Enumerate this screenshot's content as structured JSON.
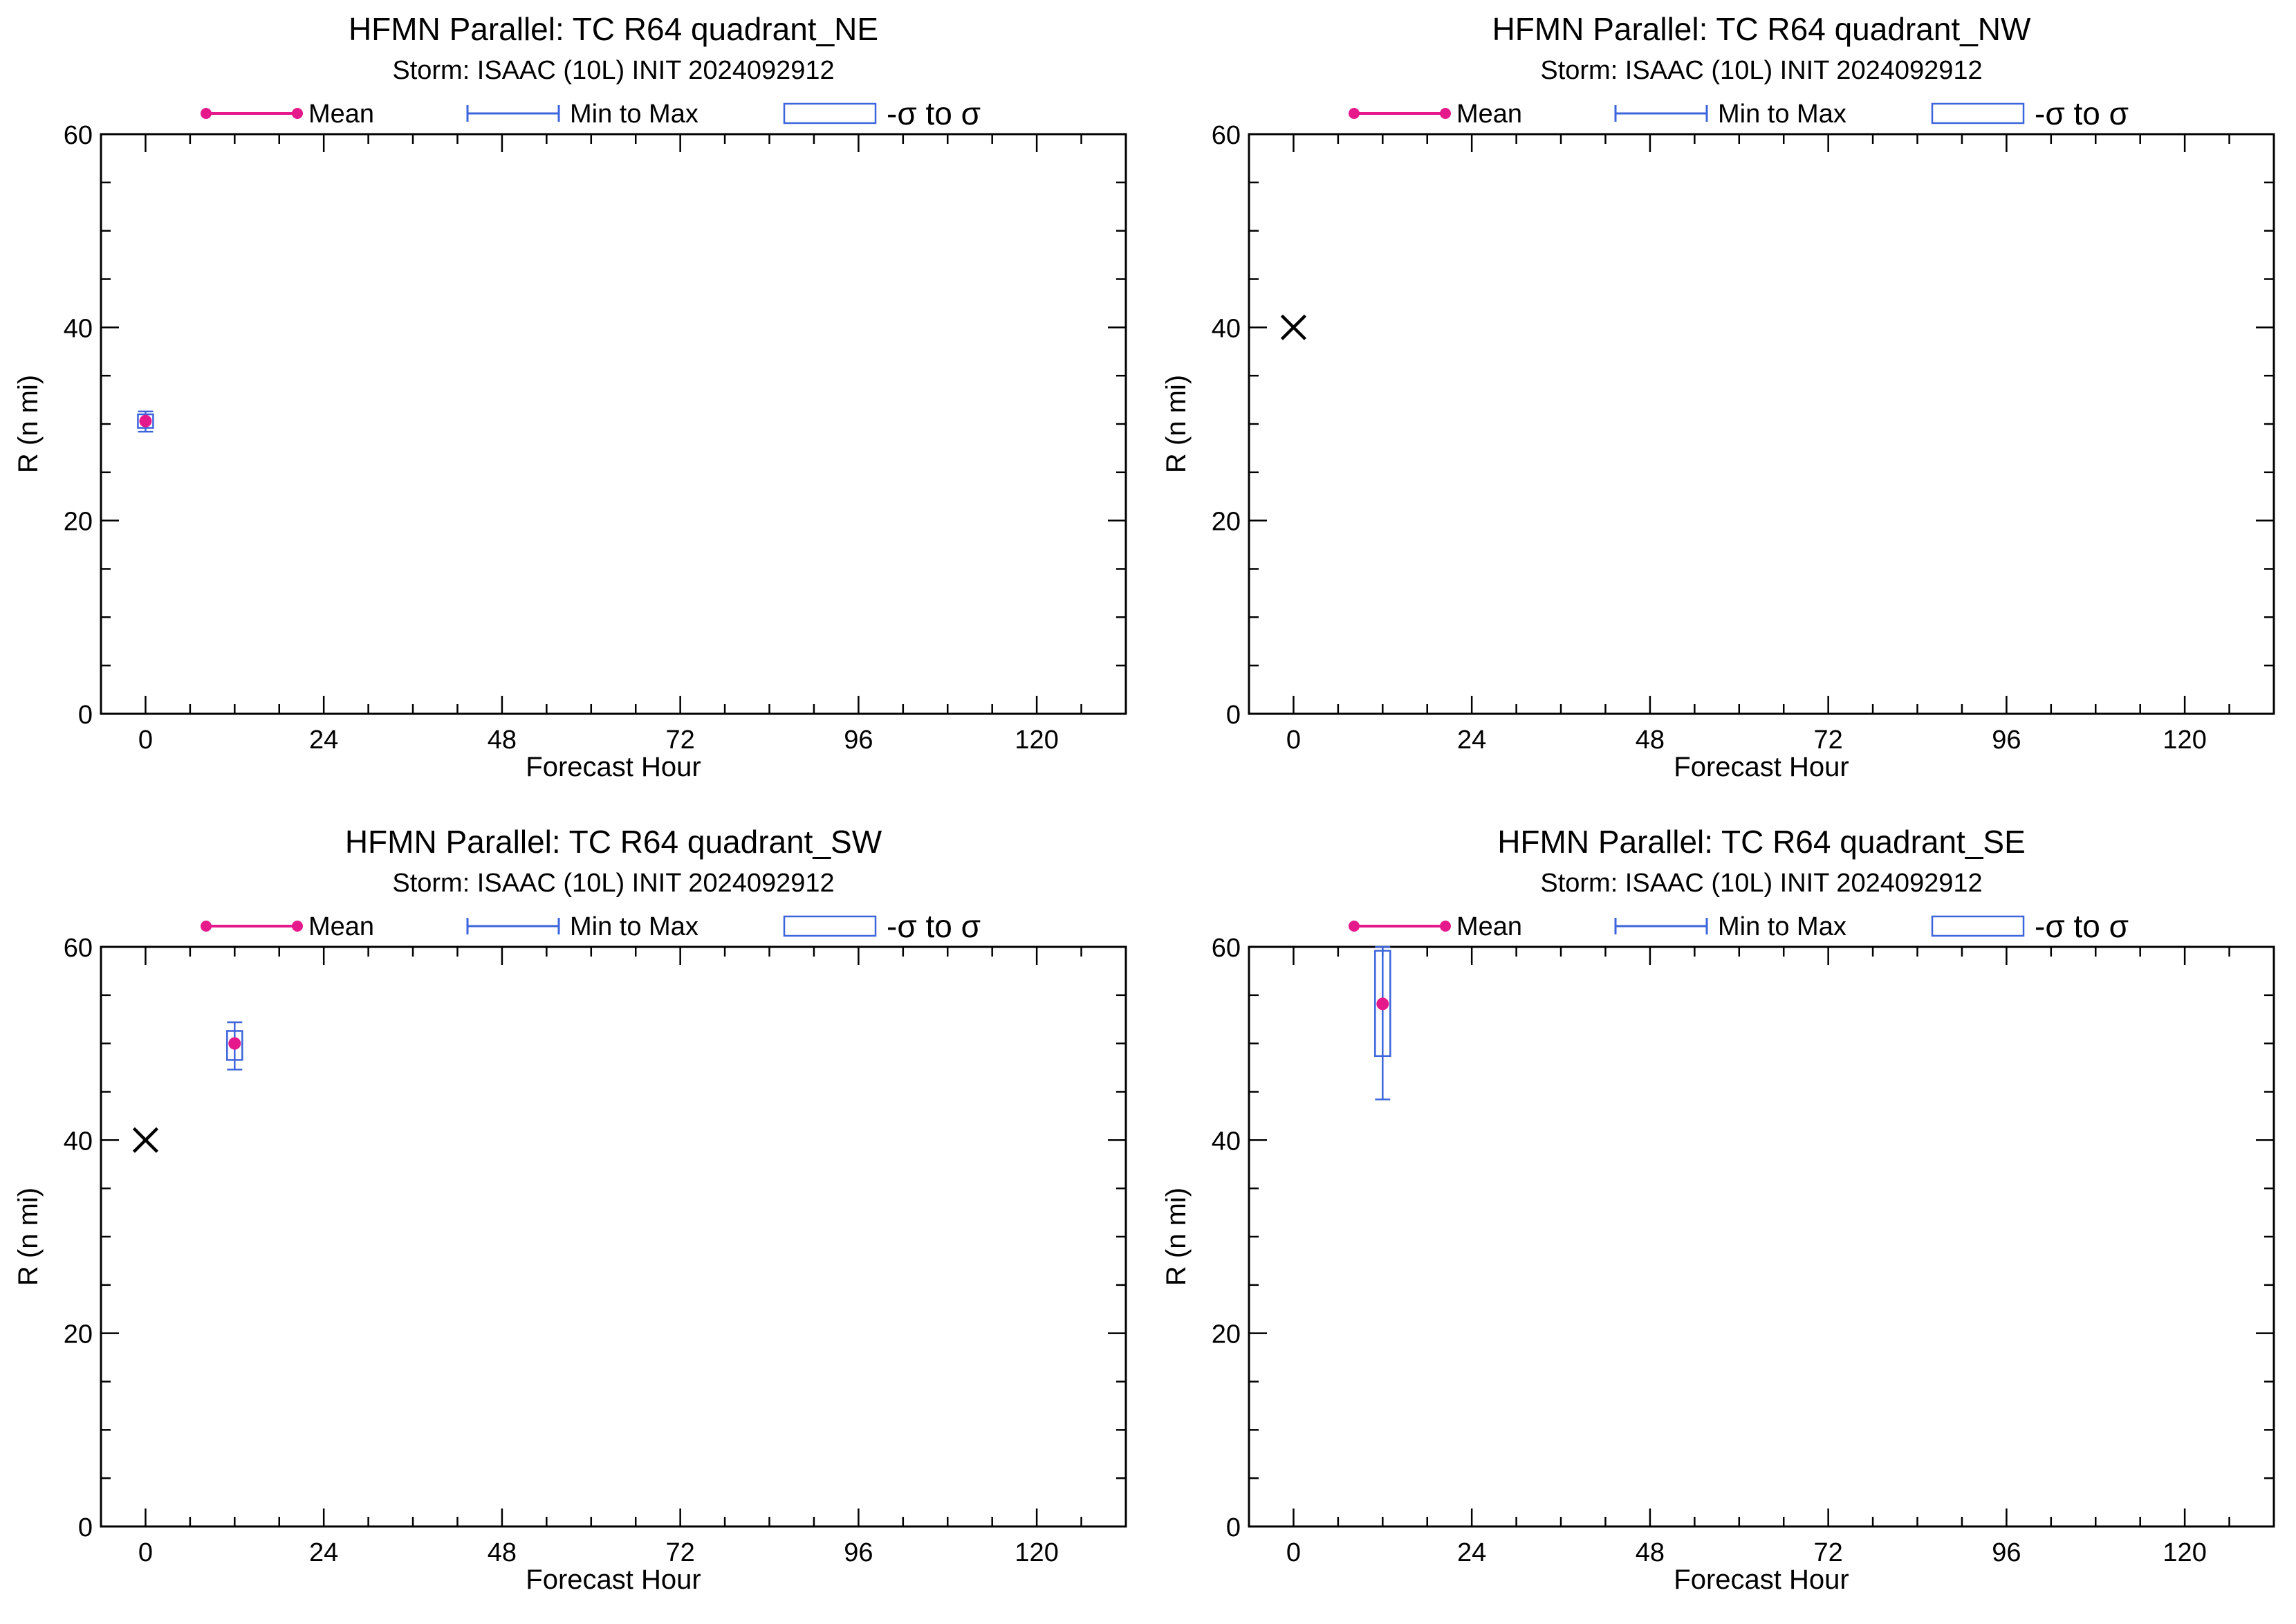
{
  "legend": {
    "mean_label": "Mean",
    "minmax_label": "Min to Max",
    "sigma_label": "-σ to σ"
  },
  "colors": {
    "mean": "#e6198c",
    "range": "#3c64dc",
    "axis": "#000000",
    "obs_marker": "#000000"
  },
  "chart_data": [
    {
      "type": "box",
      "title": "HFMN Parallel: TC  R64 quadrant_NE",
      "subtitle": "Storm: ISAAC (10L) INIT 2024092912",
      "xlabel": "Forecast Hour",
      "ylabel": "R (n mi)",
      "xlim": [
        -6,
        132
      ],
      "ylim": [
        0,
        60
      ],
      "xticks": [
        0,
        24,
        48,
        72,
        96,
        120
      ],
      "yticks": [
        0,
        20,
        40,
        60
      ],
      "grid": false,
      "legend_position": "top",
      "stats": [
        {
          "hour": 0,
          "mean": 30.3,
          "min": 29.2,
          "max": 31.3,
          "sigma_low": 29.6,
          "sigma_high": 31.0
        }
      ],
      "observed": []
    },
    {
      "type": "box",
      "title": "HFMN Parallel: TC  R64 quadrant_NW",
      "subtitle": "Storm: ISAAC (10L) INIT 2024092912",
      "xlabel": "Forecast Hour",
      "ylabel": "R (n mi)",
      "xlim": [
        -6,
        132
      ],
      "ylim": [
        0,
        60
      ],
      "xticks": [
        0,
        24,
        48,
        72,
        96,
        120
      ],
      "yticks": [
        0,
        20,
        40,
        60
      ],
      "grid": false,
      "legend_position": "top",
      "stats": [],
      "observed": [
        {
          "hour": 0,
          "value": 40
        }
      ]
    },
    {
      "type": "box",
      "title": "HFMN Parallel: TC  R64 quadrant_SW",
      "subtitle": "Storm: ISAAC (10L) INIT 2024092912",
      "xlabel": "Forecast Hour",
      "ylabel": "R (n mi)",
      "xlim": [
        -6,
        132
      ],
      "ylim": [
        0,
        60
      ],
      "xticks": [
        0,
        24,
        48,
        72,
        96,
        120
      ],
      "yticks": [
        0,
        20,
        40,
        60
      ],
      "grid": false,
      "legend_position": "top",
      "stats": [
        {
          "hour": 12,
          "mean": 50.0,
          "min": 47.3,
          "max": 52.2,
          "sigma_low": 48.3,
          "sigma_high": 51.3
        }
      ],
      "observed": [
        {
          "hour": 0,
          "value": 40
        }
      ]
    },
    {
      "type": "box",
      "title": "HFMN Parallel: TC  R64 quadrant_SE",
      "subtitle": "Storm: ISAAC (10L) INIT 2024092912",
      "xlabel": "Forecast Hour",
      "ylabel": "R (n mi)",
      "xlim": [
        -6,
        132
      ],
      "ylim": [
        0,
        60
      ],
      "xticks": [
        0,
        24,
        48,
        72,
        96,
        120
      ],
      "yticks": [
        0,
        20,
        40,
        60
      ],
      "grid": false,
      "legend_position": "top",
      "stats": [
        {
          "hour": 12,
          "mean": 54.1,
          "min": 44.2,
          "max": 60.0,
          "sigma_low": 48.7,
          "sigma_high": 59.6
        }
      ],
      "observed": []
    }
  ]
}
